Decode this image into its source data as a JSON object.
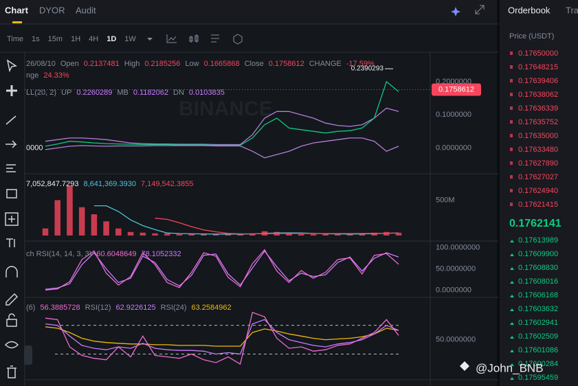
{
  "tabs": [
    "Chart",
    "DYOR",
    "Audit"
  ],
  "intervals": [
    "Time",
    "1s",
    "15m",
    "1H",
    "4H",
    "1D",
    "1W"
  ],
  "active_interval": "1D",
  "watermark": "@John_BNB",
  "orderbook": {
    "title": "Orderbook",
    "tab2": "Tra",
    "column": "Price (USDT)",
    "asks": [
      "0.17650000",
      "0.17648215",
      "0.17639406",
      "0.17638062",
      "0.17636339",
      "0.17635752",
      "0.17635000",
      "0.17633480",
      "0.17627890",
      "0.17627027",
      "0.17624940",
      "0.17621415"
    ],
    "mid": "0.1762141",
    "bids": [
      "0.17613989",
      "0.17609900",
      "0.17608830",
      "0.17608016",
      "0.17606168",
      "0.17603632",
      "0.17602941",
      "0.17602509",
      "0.17601086",
      "0.17600284",
      "0.17595459"
    ]
  },
  "chart_data": [
    {
      "type": "line",
      "header": [
        [
          {
            "text": "26/08/10",
            "color": "#848e9c"
          },
          {
            "text": "Open",
            "color": "#848e9c"
          },
          {
            "text": "0.2137481",
            "color": "#f6465d"
          },
          {
            "text": "High",
            "color": "#848e9c"
          },
          {
            "text": "0.2185256",
            "color": "#f6465d"
          },
          {
            "text": "Low",
            "color": "#848e9c"
          },
          {
            "text": "0.1665868",
            "color": "#f6465d"
          },
          {
            "text": "Close",
            "color": "#848e9c"
          },
          {
            "text": "0.1758612",
            "color": "#f6465d"
          },
          {
            "text": "CHANGE",
            "color": "#848e9c"
          },
          {
            "text": "-17.59%",
            "color": "#f6465d"
          }
        ],
        [
          {
            "text": "nge",
            "color": "#848e9c"
          },
          {
            "text": "24.33%",
            "color": "#f6465d"
          }
        ],
        [
          {
            "text": "LL(20, 2)",
            "color": "#848e9c"
          },
          {
            "text": "UP",
            "color": "#848e9c"
          },
          {
            "text": "0.2260289",
            "color": "#c77dff"
          },
          {
            "text": "MB",
            "color": "#848e9c"
          },
          {
            "text": "0.1182062",
            "color": "#c77dff"
          },
          {
            "text": "DN",
            "color": "#848e9c"
          },
          {
            "text": "0.0103835",
            "color": "#c77dff"
          }
        ]
      ],
      "ylim": [
        -0.076,
        0.289
      ],
      "yticks": [
        {
          "value": 0,
          "label": "0.0000000"
        },
        {
          "value": 0.1,
          "label": "0.1000000"
        },
        {
          "value": 0.2,
          "label": "0.2000000"
        }
      ],
      "left_label": "0000",
      "high": {
        "value": 0.2390293,
        "label": "0.2390293"
      },
      "last_price": {
        "value": 0.1758612,
        "label": "0.1758612"
      },
      "series": [
        {
          "color": "#b57edc",
          "values": [
            0.02,
            0.025,
            0.03,
            0.03,
            0.028,
            0.025,
            0.02,
            0.015,
            0.013,
            0.012,
            0.012,
            0.011,
            0.011,
            0.011,
            0.01,
            0.01,
            0.01,
            0.04,
            0.09,
            0.11,
            0.11,
            0.1,
            0.09,
            0.075,
            0.068,
            0.065,
            0.07,
            0.09,
            0.12,
            0.11
          ]
        },
        {
          "color": "#b57edc",
          "values": [
            -0.005,
            0,
            0.005,
            0.007,
            0.006,
            0.005,
            0.006,
            0.006,
            0.006,
            0.007,
            0.007,
            0.007,
            0.007,
            0.007,
            0.006,
            0.006,
            0.006,
            -0.01,
            -0.03,
            -0.02,
            -0.01,
            0.005,
            0.015,
            0.02,
            0.025,
            0.03,
            0.03,
            0.02,
            -0.01,
            0.005
          ]
        },
        {
          "color": "#0ecb81",
          "values": [
            0.005,
            0.012,
            0.02,
            0.018,
            0.015,
            0.013,
            0.012,
            0.011,
            0.01,
            0.01,
            0.01,
            0.009,
            0.009,
            0.009,
            0.008,
            0.008,
            0.008,
            0.03,
            0.07,
            0.09,
            0.06,
            0.055,
            0.05,
            0.045,
            0.05,
            0.052,
            0.06,
            0.09,
            0.2,
            0.17
          ]
        }
      ]
    },
    {
      "type": "bar",
      "header": [
        [
          {
            "text": "7,052,847.7293",
            "color": "#eaecef"
          },
          {
            "text": "8,641,369.3930",
            "color": "#4fc3d7"
          },
          {
            "text": "7,149,542.3855",
            "color": "#f6465d"
          }
        ]
      ],
      "ylim": [
        -69000000,
        863000000
      ],
      "yticks": [
        {
          "value": 500000000,
          "label": "500M"
        }
      ],
      "series": [
        {
          "type": "bar",
          "color": "#f6465d",
          "values": [
            100000000,
            500000000,
            700000000,
            400000000,
            300000000,
            200000000,
            100000000,
            50000000,
            40000000,
            30000000,
            30000000,
            20000000,
            20000000,
            20000000,
            20000000,
            20000000,
            20000000,
            30000000,
            60000000,
            50000000,
            30000000,
            20000000,
            20000000,
            20000000,
            20000000,
            20000000,
            30000000,
            40000000,
            50000000,
            40000000
          ]
        },
        {
          "type": "line",
          "color": "#4fc3d7",
          "values": [
            null,
            null,
            null,
            null,
            420000000,
            420000000,
            340000000,
            220000000,
            140000000,
            84000000,
            36000000,
            28000000,
            24000000,
            22000000,
            20000000,
            20000000,
            20000000,
            22000000,
            30000000,
            36000000,
            38000000,
            36000000,
            30000000,
            24000000,
            22000000,
            20000000,
            22000000,
            26000000,
            32000000,
            36000000
          ]
        },
        {
          "type": "line",
          "color": "#f6465d",
          "values": [
            null,
            null,
            null,
            null,
            null,
            null,
            null,
            null,
            null,
            245000000,
            228000000,
            180000000,
            125000000,
            80000000,
            52000000,
            30000000,
            24000000,
            24000000,
            26000000,
            28000000,
            28000000,
            28000000,
            28000000,
            28000000,
            28000000,
            28000000,
            29000000,
            30000000,
            32000000,
            34000000
          ]
        }
      ]
    },
    {
      "type": "line",
      "header": [
        [
          {
            "text": "ch RSI(14, 14, 3, 3)",
            "color": "#848e9c"
          },
          {
            "text": "60.6048649",
            "color": "#f06bd0"
          },
          {
            "text": "78.1052332",
            "color": "#c77dff"
          }
        ]
      ],
      "ylim": [
        -15.5,
        113.8
      ],
      "yticks": [
        {
          "value": 0,
          "label": "0.0000000"
        },
        {
          "value": 50,
          "label": "50.0000000"
        },
        {
          "value": 100,
          "label": "100.0000000"
        }
      ],
      "series": [
        {
          "color": "#c77dff",
          "values": [
            2,
            5,
            15,
            60,
            88,
            50,
            18,
            28,
            80,
            65,
            25,
            10,
            35,
            82,
            85,
            38,
            12,
            52,
            92,
            55,
            22,
            40,
            32,
            36,
            65,
            78,
            45,
            75,
            88,
            78
          ]
        },
        {
          "color": "#f06bd0",
          "values": [
            0,
            3,
            20,
            72,
            92,
            40,
            12,
            32,
            88,
            60,
            18,
            6,
            42,
            88,
            80,
            30,
            8,
            62,
            95,
            45,
            18,
            46,
            28,
            42,
            72,
            76,
            38,
            82,
            86,
            61
          ]
        }
      ]
    },
    {
      "type": "line",
      "header": [
        [
          {
            "text": "(6)",
            "color": "#848e9c"
          },
          {
            "text": "56.3885728",
            "color": "#f06bd0"
          },
          {
            "text": "RSI(12)",
            "color": "#848e9c"
          },
          {
            "text": "62.9226125",
            "color": "#c77dff"
          },
          {
            "text": "RSI(24)",
            "color": "#848e9c"
          },
          {
            "text": "63.2584962",
            "color": "#f0b90b"
          }
        ]
      ],
      "ylim": [
        -5,
        108
      ],
      "yticks": [
        {
          "value": 50,
          "label": "50.0000000"
        }
      ],
      "bands": [
        70,
        30
      ],
      "series": [
        {
          "color": "#f0b90b",
          "values": [
            68,
            66,
            60,
            52,
            48,
            46,
            45,
            44,
            44,
            43,
            43,
            42,
            42,
            42,
            41,
            41,
            41,
            60,
            65,
            62,
            58,
            55,
            52,
            50,
            51,
            52,
            54,
            58,
            66,
            63
          ]
        },
        {
          "color": "#c77dff",
          "values": [
            72,
            70,
            55,
            42,
            38,
            36,
            40,
            38,
            45,
            38,
            36,
            35,
            35,
            34,
            30,
            32,
            30,
            72,
            78,
            60,
            50,
            46,
            42,
            40,
            44,
            46,
            50,
            58,
            70,
            63
          ]
        },
        {
          "color": "#f06bd0",
          "values": [
            80,
            78,
            40,
            28,
            24,
            22,
            40,
            26,
            55,
            28,
            26,
            24,
            30,
            22,
            18,
            26,
            16,
            88,
            82,
            52,
            38,
            40,
            34,
            36,
            42,
            44,
            52,
            60,
            78,
            56
          ]
        }
      ]
    }
  ]
}
